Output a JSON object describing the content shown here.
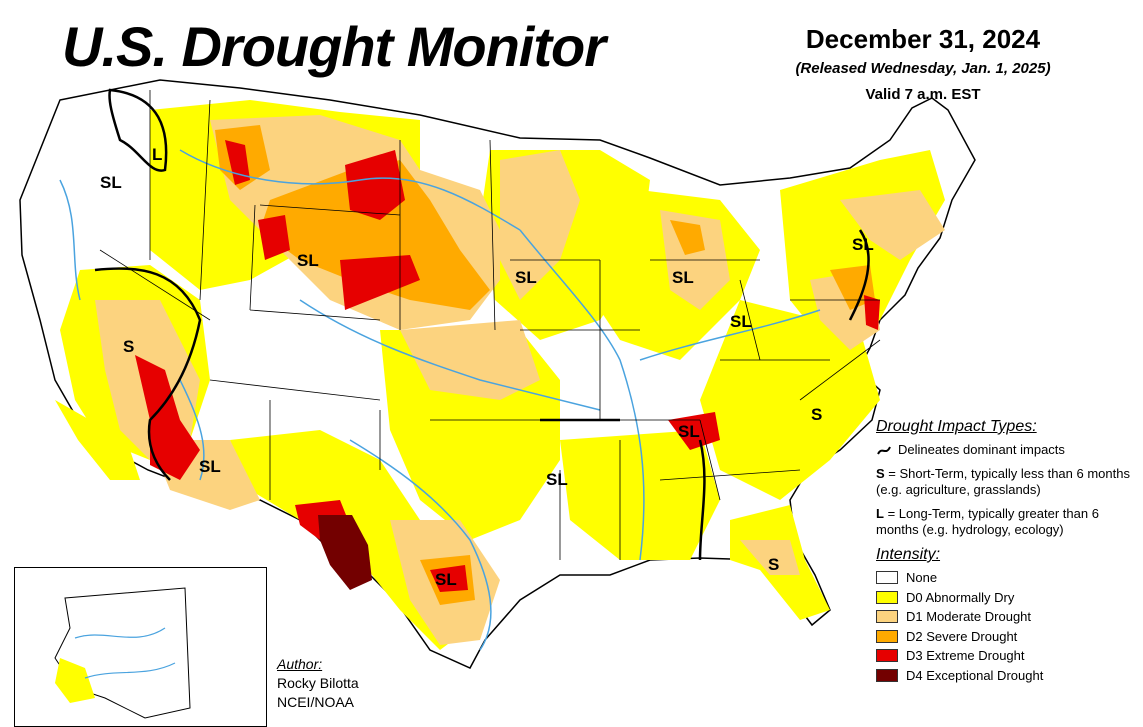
{
  "header": {
    "title": "U.S. Drought Monitor",
    "date": "December 31, 2024",
    "released": "(Released Wednesday, Jan. 1, 2025)",
    "valid": "Valid 7 a.m. EST"
  },
  "impact_legend": {
    "heading": "Drought Impact Types:",
    "delineates": "Delineates dominant impacts",
    "short_term": {
      "code": "S",
      "text": " = Short-Term, typically less than 6 months (e.g. agriculture, grasslands)"
    },
    "long_term": {
      "code": "L",
      "text": " = Long-Term, typically greater than 6 months (e.g. hydrology, ecology)"
    }
  },
  "intensity_legend": {
    "heading": "Intensity:",
    "levels": [
      {
        "label": "None",
        "color": "#ffffff"
      },
      {
        "label": "D0 Abnormally Dry",
        "color": "#ffff00"
      },
      {
        "label": "D1 Moderate Drought",
        "color": "#fcd37f"
      },
      {
        "label": "D2 Severe Drought",
        "color": "#ffaa00"
      },
      {
        "label": "D3 Extreme Drought",
        "color": "#e60000"
      },
      {
        "label": "D4 Exceptional Drought",
        "color": "#730000"
      }
    ]
  },
  "author": {
    "heading": "Author:",
    "name": "Rocky Bilotta",
    "org": "NCEI/NOAA"
  },
  "map_labels": {
    "nw_sl": "SL",
    "wa_l": "L",
    "wy_sl": "SL",
    "ia_sl": "SL",
    "mi_sl": "SL",
    "oh_sl": "SL",
    "ne_sl": "SL",
    "nv_s": "S",
    "az_sl": "SL",
    "nc_s": "S",
    "tn_sl": "SL",
    "ar_sl": "SL",
    "tx_sl": "SL",
    "ga_s": "S"
  },
  "colors": {
    "water": "#4aa3df",
    "border": "#000000"
  }
}
